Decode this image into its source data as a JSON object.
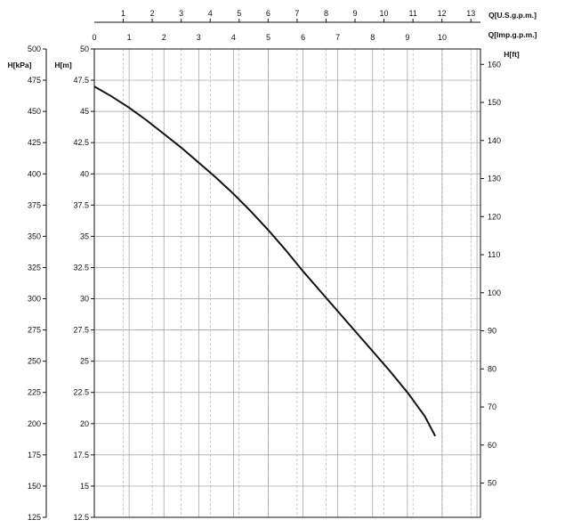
{
  "chart_data": {
    "type": "line",
    "x_axis_bottom_unit": "",
    "y_axes": {
      "kpa": {
        "label": "H[kPa]",
        "ticks": [
          "500",
          "475",
          "450",
          "425",
          "400",
          "375",
          "350",
          "325",
          "300",
          "275",
          "250",
          "225",
          "200",
          "175",
          "150",
          "125"
        ]
      },
      "m": {
        "label": "H[m]",
        "ticks": [
          "50",
          "47.5",
          "45",
          "42.5",
          "40",
          "37.5",
          "35",
          "32.5",
          "30",
          "27.5",
          "25",
          "22.5",
          "20",
          "17.5",
          "15",
          "12.5"
        ]
      },
      "ft": {
        "label": "H[ft]",
        "ticks": [
          "160",
          "150",
          "140",
          "130",
          "120",
          "110",
          "100",
          "90",
          "80",
          "70",
          "60",
          "50"
        ]
      }
    },
    "x_axes": {
      "usgpm": {
        "label": "Q[U.S.g.p.m.]",
        "ticks": [
          "1",
          "2",
          "3",
          "4",
          "5",
          "6",
          "7",
          "8",
          "9",
          "10",
          "11",
          "12",
          "13"
        ]
      },
      "impgpm": {
        "label": "Q[Imp.g.p.m.]",
        "ticks": [
          "0",
          "1",
          "2",
          "3",
          "4",
          "5",
          "6",
          "7",
          "8",
          "9",
          "10"
        ]
      }
    },
    "ylim_m": [
      12.5,
      50
    ],
    "xlim_impgpm": [
      0,
      11.1
    ],
    "grid": true,
    "series": [
      {
        "x": [
          0,
          0.5,
          1,
          1.5,
          2,
          2.5,
          3,
          3.5,
          4,
          4.5,
          5,
          5.5,
          6,
          6.5,
          7,
          7.5,
          8,
          8.5,
          9,
          9.5,
          9.8
        ],
        "y": [
          47,
          46.2,
          45.3,
          44.3,
          43.2,
          42.1,
          40.9,
          39.7,
          38.4,
          37.0,
          35.5,
          33.9,
          32.2,
          30.6,
          29.0,
          27.4,
          25.8,
          24.2,
          22.5,
          20.6,
          19.0
        ]
      }
    ],
    "colors": {
      "curve": "#111111",
      "grid": "#9a9a9a",
      "axis": "#111111"
    }
  }
}
